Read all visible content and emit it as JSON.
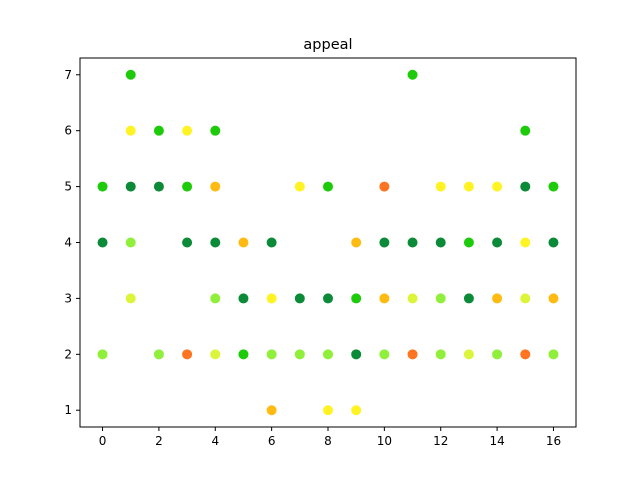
{
  "chart_data": {
    "type": "scatter",
    "title": "appeal",
    "xlabel": "",
    "ylabel": "",
    "xlim": [
      -0.8,
      16.8
    ],
    "ylim": [
      0.7,
      7.3
    ],
    "xticks": [
      "0",
      "2",
      "4",
      "6",
      "8",
      "10",
      "12",
      "14",
      "16"
    ],
    "yticks": [
      "1",
      "2",
      "3",
      "4",
      "5",
      "6",
      "7"
    ],
    "grid": false,
    "colors": {
      "dark_green": "#0b8a37",
      "green": "#1ecb0a",
      "light_green": "#8fef3a",
      "yellow_green": "#dcf53a",
      "yellow": "#fff323",
      "amber": "#ffbb12",
      "orange": "#ff7420"
    },
    "points": [
      {
        "x": 0,
        "y": 5,
        "color": "green"
      },
      {
        "x": 0,
        "y": 4,
        "color": "dark_green"
      },
      {
        "x": 0,
        "y": 2,
        "color": "light_green"
      },
      {
        "x": 1,
        "y": 7,
        "color": "green"
      },
      {
        "x": 1,
        "y": 6,
        "color": "yellow"
      },
      {
        "x": 1,
        "y": 5,
        "color": "dark_green"
      },
      {
        "x": 1,
        "y": 4,
        "color": "light_green"
      },
      {
        "x": 1,
        "y": 3,
        "color": "yellow_green"
      },
      {
        "x": 2,
        "y": 6,
        "color": "green"
      },
      {
        "x": 2,
        "y": 5,
        "color": "dark_green"
      },
      {
        "x": 2,
        "y": 2,
        "color": "light_green"
      },
      {
        "x": 3,
        "y": 6,
        "color": "yellow"
      },
      {
        "x": 3,
        "y": 5,
        "color": "green"
      },
      {
        "x": 3,
        "y": 4,
        "color": "dark_green"
      },
      {
        "x": 3,
        "y": 2,
        "color": "orange"
      },
      {
        "x": 4,
        "y": 6,
        "color": "green"
      },
      {
        "x": 4,
        "y": 5,
        "color": "amber"
      },
      {
        "x": 4,
        "y": 4,
        "color": "dark_green"
      },
      {
        "x": 4,
        "y": 3,
        "color": "light_green"
      },
      {
        "x": 4,
        "y": 2,
        "color": "yellow_green"
      },
      {
        "x": 5,
        "y": 4,
        "color": "amber"
      },
      {
        "x": 5,
        "y": 3,
        "color": "dark_green"
      },
      {
        "x": 5,
        "y": 2,
        "color": "green"
      },
      {
        "x": 6,
        "y": 4,
        "color": "dark_green"
      },
      {
        "x": 6,
        "y": 3,
        "color": "yellow"
      },
      {
        "x": 6,
        "y": 2,
        "color": "light_green"
      },
      {
        "x": 6,
        "y": 1,
        "color": "amber"
      },
      {
        "x": 7,
        "y": 5,
        "color": "yellow"
      },
      {
        "x": 7,
        "y": 3,
        "color": "dark_green"
      },
      {
        "x": 7,
        "y": 2,
        "color": "light_green"
      },
      {
        "x": 8,
        "y": 5,
        "color": "green"
      },
      {
        "x": 8,
        "y": 3,
        "color": "dark_green"
      },
      {
        "x": 8,
        "y": 2,
        "color": "light_green"
      },
      {
        "x": 8,
        "y": 1,
        "color": "yellow"
      },
      {
        "x": 9,
        "y": 4,
        "color": "amber"
      },
      {
        "x": 9,
        "y": 3,
        "color": "green"
      },
      {
        "x": 9,
        "y": 2,
        "color": "dark_green"
      },
      {
        "x": 9,
        "y": 1,
        "color": "yellow"
      },
      {
        "x": 10,
        "y": 5,
        "color": "orange"
      },
      {
        "x": 10,
        "y": 4,
        "color": "dark_green"
      },
      {
        "x": 10,
        "y": 3,
        "color": "amber"
      },
      {
        "x": 10,
        "y": 2,
        "color": "light_green"
      },
      {
        "x": 11,
        "y": 7,
        "color": "green"
      },
      {
        "x": 11,
        "y": 4,
        "color": "dark_green"
      },
      {
        "x": 11,
        "y": 3,
        "color": "yellow_green"
      },
      {
        "x": 11,
        "y": 2,
        "color": "orange"
      },
      {
        "x": 12,
        "y": 5,
        "color": "yellow"
      },
      {
        "x": 12,
        "y": 4,
        "color": "dark_green"
      },
      {
        "x": 12,
        "y": 3,
        "color": "light_green"
      },
      {
        "x": 12,
        "y": 2,
        "color": "light_green"
      },
      {
        "x": 13,
        "y": 5,
        "color": "yellow"
      },
      {
        "x": 13,
        "y": 4,
        "color": "green"
      },
      {
        "x": 13,
        "y": 3,
        "color": "dark_green"
      },
      {
        "x": 13,
        "y": 2,
        "color": "yellow_green"
      },
      {
        "x": 14,
        "y": 5,
        "color": "yellow"
      },
      {
        "x": 14,
        "y": 4,
        "color": "dark_green"
      },
      {
        "x": 14,
        "y": 3,
        "color": "amber"
      },
      {
        "x": 14,
        "y": 2,
        "color": "light_green"
      },
      {
        "x": 15,
        "y": 6,
        "color": "green"
      },
      {
        "x": 15,
        "y": 5,
        "color": "dark_green"
      },
      {
        "x": 15,
        "y": 4,
        "color": "yellow"
      },
      {
        "x": 15,
        "y": 3,
        "color": "yellow_green"
      },
      {
        "x": 15,
        "y": 2,
        "color": "orange"
      },
      {
        "x": 16,
        "y": 5,
        "color": "green"
      },
      {
        "x": 16,
        "y": 4,
        "color": "dark_green"
      },
      {
        "x": 16,
        "y": 3,
        "color": "amber"
      },
      {
        "x": 16,
        "y": 2,
        "color": "light_green"
      }
    ]
  }
}
